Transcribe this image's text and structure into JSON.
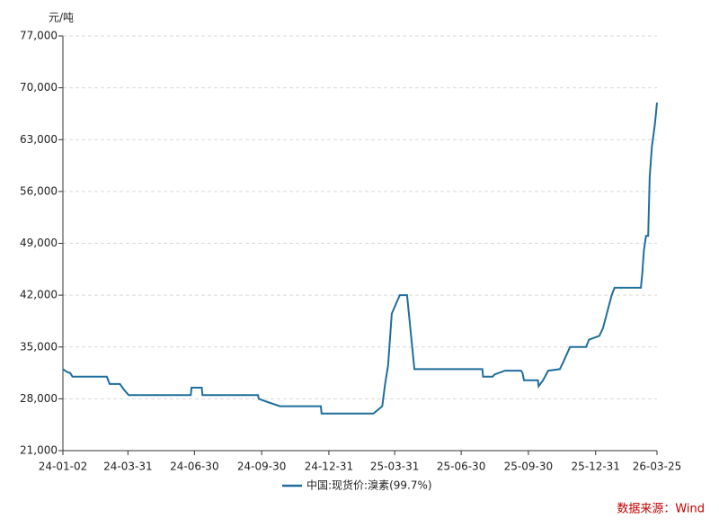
{
  "chart_data": {
    "type": "line",
    "y_unit": "元/吨",
    "source": "数据来源：Wind",
    "x": [
      "24-01-02",
      "24-01-08",
      "24-01-12",
      "24-01-15",
      "24-03-02",
      "24-03-06",
      "24-03-20",
      "24-03-25",
      "24-04-01",
      "24-06-25",
      "24-06-26",
      "24-07-10",
      "24-07-11",
      "24-09-25",
      "24-09-26",
      "24-10-10",
      "24-10-25",
      "24-12-20",
      "24-12-21",
      "25-03-02",
      "25-03-14",
      "25-03-18",
      "25-03-22",
      "25-03-27",
      "25-04-07",
      "25-04-17",
      "25-04-22",
      "25-04-27",
      "25-07-29",
      "25-07-30",
      "25-08-12",
      "25-08-15",
      "25-08-29",
      "25-09-20",
      "25-09-22",
      "25-09-24",
      "25-10-13",
      "25-10-14",
      "25-10-20",
      "25-10-27",
      "25-11-12",
      "25-11-17",
      "25-11-26",
      "25-12-18",
      "25-12-22",
      "26-01-05",
      "26-01-10",
      "26-01-14",
      "26-01-22",
      "26-01-26",
      "26-03-03",
      "26-03-05",
      "26-03-07",
      "26-03-10",
      "26-03-13",
      "26-03-15",
      "26-03-18",
      "26-03-22",
      "26-03-25"
    ],
    "series": [
      {
        "name": "中国:现货价:溴素(99.7%)",
        "color": "#1f6e9c",
        "values": [
          32000,
          31600,
          31500,
          31000,
          31000,
          30000,
          30000,
          29300,
          28500,
          28500,
          29500,
          29500,
          28500,
          28500,
          28000,
          27500,
          27000,
          27000,
          26000,
          26000,
          27000,
          30000,
          32500,
          39500,
          42000,
          42000,
          37000,
          32000,
          32000,
          31000,
          31000,
          31300,
          31800,
          31800,
          31500,
          30500,
          30500,
          29700,
          30500,
          31800,
          32000,
          33000,
          35000,
          35000,
          36000,
          36500,
          37500,
          39000,
          42000,
          43000,
          43000,
          45000,
          48000,
          50000,
          50000,
          58000,
          62000,
          65000,
          68000
        ]
      }
    ],
    "xlim": [
      "24-01-02",
      "26-03-25"
    ],
    "xticks": [
      "24-01-02",
      "24-03-31",
      "24-06-30",
      "24-09-30",
      "24-12-31",
      "25-03-31",
      "25-06-30",
      "25-09-30",
      "25-12-31",
      "26-03-25"
    ],
    "ylim": [
      21000,
      77000
    ],
    "yticks": [
      {
        "value": 21000,
        "label": "21,000"
      },
      {
        "value": 28000,
        "label": "28,000"
      },
      {
        "value": 35000,
        "label": "35,000"
      },
      {
        "value": 42000,
        "label": "42,000"
      },
      {
        "value": 49000,
        "label": "49,000"
      },
      {
        "value": 56000,
        "label": "56,000"
      },
      {
        "value": 63000,
        "label": "63,000"
      },
      {
        "value": 70000,
        "label": "70,000"
      },
      {
        "value": 77000,
        "label": "77,000"
      }
    ],
    "grid": true
  }
}
